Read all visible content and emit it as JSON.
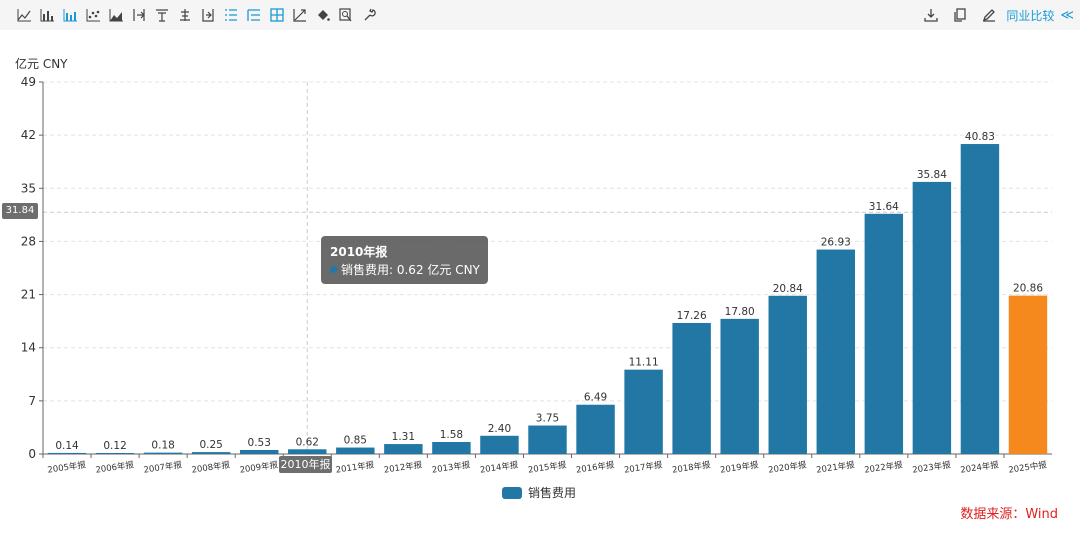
{
  "toolbar": {
    "left_icons": [
      "line-chart-icon",
      "bar-chart-icon",
      "stacked-bar-icon",
      "scatter-icon",
      "area-chart-icon",
      "bar-left-icon",
      "bar-top-icon",
      "bar-center-icon",
      "bar-right-icon",
      "list-icon",
      "list-indent-icon",
      "grid-icon",
      "trend-icon",
      "fill-bucket-icon",
      "zoom-icon",
      "wrench-icon"
    ],
    "right_icons": [
      "download-icon",
      "copy-icon",
      "edit-icon"
    ],
    "peer_compare": "同业比较",
    "collapse": "≪"
  },
  "unit_label": "亿元  CNY",
  "source": "数据来源：Wind",
  "tooltip": {
    "title": "2010年报",
    "series_label": "销售费用: 0.62  亿元  CNY"
  },
  "crosshair": {
    "y_value_label": "31.84",
    "x_label": "2010年报"
  },
  "colors": {
    "bar": "#2277a4",
    "highlight": "#f5891d",
    "tooltip_dot": "#2277a4"
  },
  "chart_data": {
    "type": "bar",
    "categories": [
      "2005年报",
      "2006年报",
      "2007年报",
      "2008年报",
      "2009年报",
      "2010年报",
      "2011年报",
      "2012年报",
      "2013年报",
      "2014年报",
      "2015年报",
      "2016年报",
      "2017年报",
      "2018年报",
      "2019年报",
      "2020年报",
      "2021年报",
      "2022年报",
      "2023年报",
      "2024年报",
      "2025中报"
    ],
    "series": [
      {
        "name": "销售费用",
        "values": [
          0.14,
          0.12,
          0.18,
          0.25,
          0.53,
          0.62,
          0.85,
          1.31,
          1.58,
          2.4,
          3.75,
          6.49,
          11.11,
          17.26,
          17.8,
          20.84,
          26.93,
          31.64,
          35.84,
          40.83,
          20.86
        ],
        "labels": [
          "0.14",
          "0.12",
          "0.18",
          "0.25",
          "0.53",
          "0.62",
          "0.85",
          "1.31",
          "1.58",
          "2.40",
          "3.75",
          "6.49",
          "11.11",
          "17.26",
          "17.80",
          "20.84",
          "26.93",
          "31.64",
          "35.84",
          "40.83",
          "20.86"
        ]
      }
    ],
    "highlight_index": 20,
    "ylim": [
      0,
      49
    ],
    "yticks": [
      "0",
      "7",
      "14",
      "21",
      "28",
      "35",
      "42",
      "49"
    ],
    "ylabel": "亿元  CNY",
    "grid": true,
    "legend_position": "bottom-center"
  }
}
